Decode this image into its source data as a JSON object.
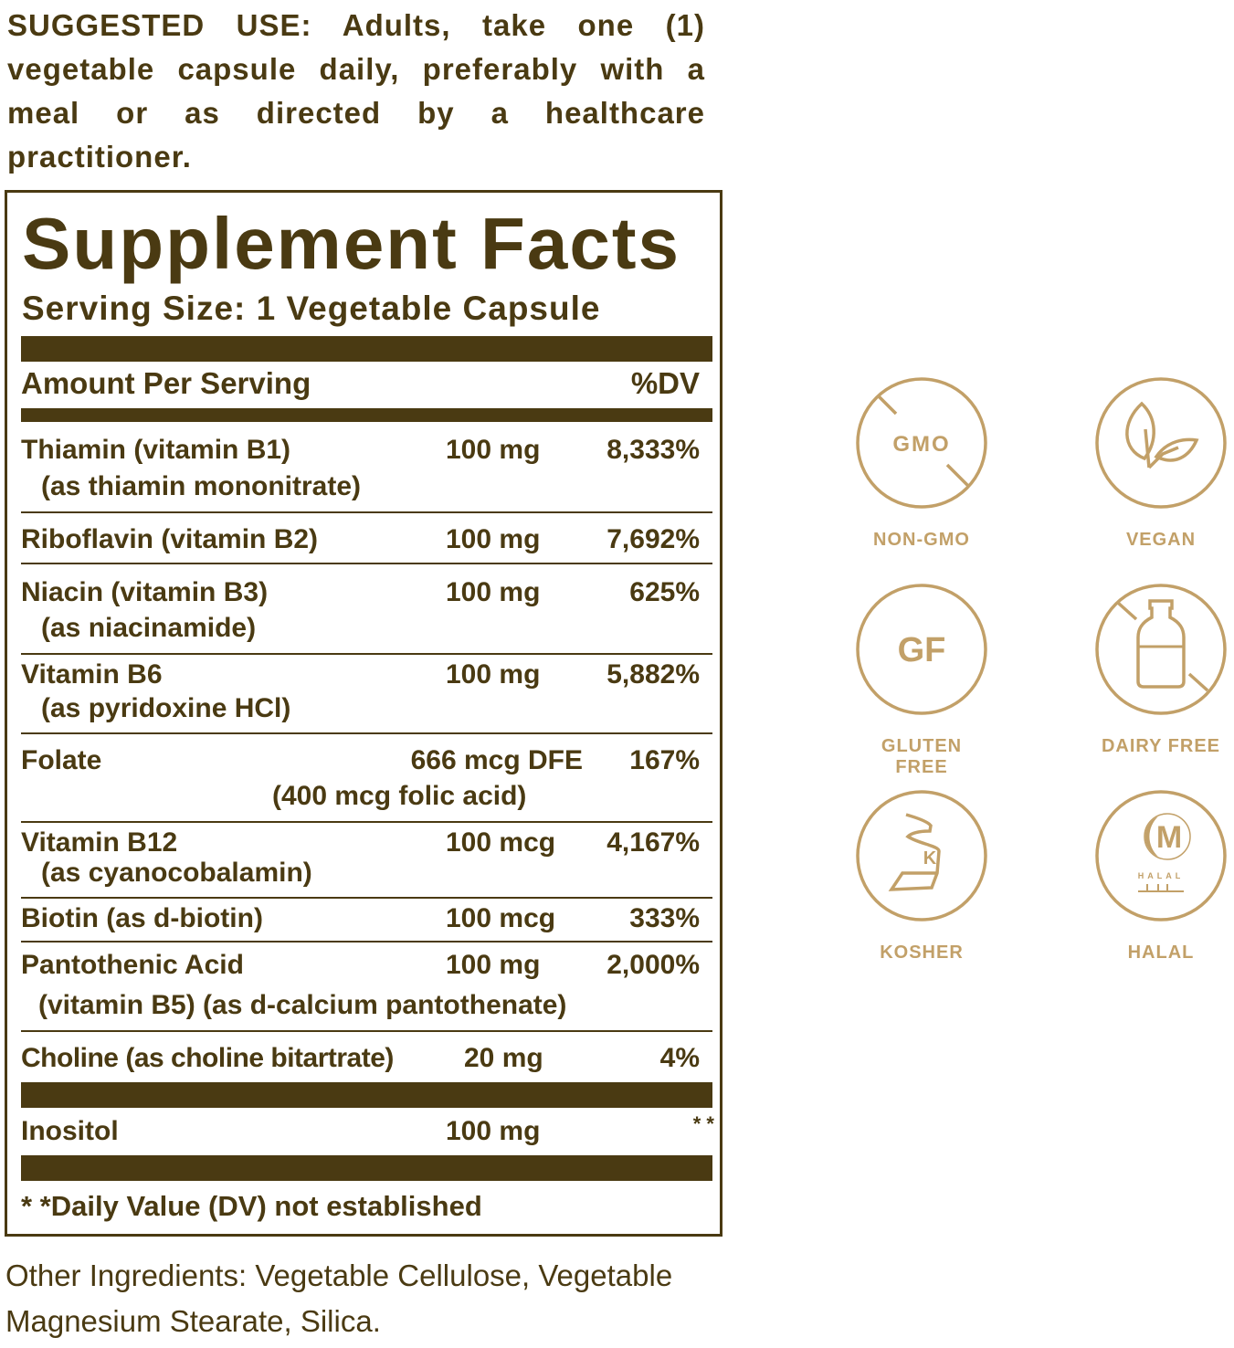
{
  "suggested_use": "SUGGESTED USE: Adults, take one (1) vegetable capsule daily, preferably with a meal or as directed by a healthcare practitioner.",
  "facts": {
    "title": "Supplement Facts",
    "serving_size": "Serving Size: 1 Vegetable Capsule",
    "amount_header": "Amount Per Serving",
    "dv_header": "%DV",
    "rows": [
      {
        "name": "Thiamin (vitamin B1)",
        "sub": "(as thiamin mononitrate)",
        "amount": "100 mg",
        "dv": "8,333%"
      },
      {
        "name": "Riboflavin (vitamin B2)",
        "amount": "100 mg",
        "dv": "7,692%"
      },
      {
        "name": "Niacin (vitamin B3)",
        "sub": "(as niacinamide)",
        "amount": "100 mg",
        "dv": "625%"
      },
      {
        "name": "Vitamin B6",
        "sub": "(as pyridoxine HCl)",
        "amount": "100 mg",
        "dv": "5,882%"
      },
      {
        "name": "Folate",
        "amount": "666 mcg DFE",
        "sub": "(400 mcg folic acid)",
        "dv": "167%"
      },
      {
        "name": "Vitamin B12",
        "sub": "(as cyanocobalamin)",
        "amount": "100 mcg",
        "dv": "4,167%"
      },
      {
        "name": "Biotin (as d-biotin)",
        "amount": "100 mcg",
        "dv": "333%"
      },
      {
        "name": "Pantothenic Acid",
        "sub": "(vitamin B5) (as d-calcium pantothenate)",
        "amount": "100 mg",
        "dv": "2,000%"
      },
      {
        "name": "Choline (as choline bitartrate)",
        "amount": "20 mg",
        "dv": "4%"
      },
      {
        "name": "Inositol",
        "amount": "100 mg",
        "dv": "* *"
      }
    ],
    "footnote": "* *Daily Value (DV) not established"
  },
  "other_ingredients": "Other Ingredients: Vegetable Cellulose, Vegetable Magnesium Stearate, Silica.",
  "badges": [
    {
      "icon": "non-gmo-icon",
      "glyph": "GMO",
      "label": "NON-GMO"
    },
    {
      "icon": "vegan-leaf-icon",
      "label": "VEGAN"
    },
    {
      "icon": "gluten-free-icon",
      "glyph": "GF",
      "label": "GLUTEN FREE"
    },
    {
      "icon": "dairy-free-bottle-icon",
      "label": "DAIRY FREE"
    },
    {
      "icon": "kosher-icon",
      "glyph": "K",
      "label": "KOSHER"
    },
    {
      "icon": "halal-icon",
      "glyph": "M",
      "sub_glyph": "HALAL",
      "label": "HALAL"
    }
  ],
  "colors": {
    "label_brown": "#4a3a12",
    "badge_gold": "#c2a068"
  }
}
